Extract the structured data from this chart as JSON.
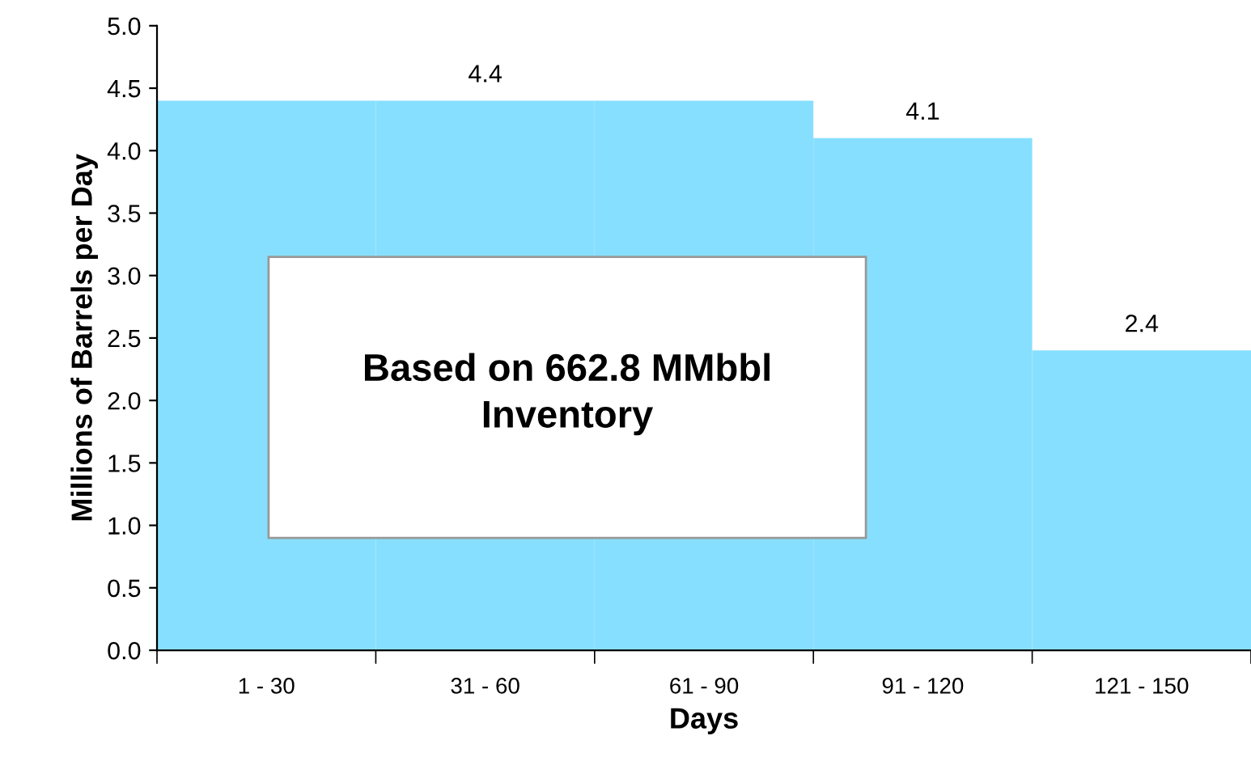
{
  "chart_data": {
    "type": "bar",
    "xlabel": "Days",
    "ylabel": "Millions of Barrels per Day",
    "categories": [
      "1 - 30",
      "31 - 60",
      "61 - 90",
      "91 - 120",
      "121 - 150"
    ],
    "values": [
      4.4,
      4.4,
      4.4,
      4.1,
      2.4
    ],
    "value_labels": [
      null,
      "4.4",
      null,
      "4.1",
      "2.4"
    ],
    "color": "#87dfff",
    "ylim": [
      0,
      5
    ],
    "yticks": [
      "0.0",
      "0.5",
      "1.0",
      "1.5",
      "2.0",
      "2.5",
      "3.0",
      "3.5",
      "4.0",
      "4.5",
      "5.0"
    ],
    "grid": false,
    "legend": false,
    "annotations": [
      "Based on 662.8 MMbbl\nInventory"
    ]
  }
}
